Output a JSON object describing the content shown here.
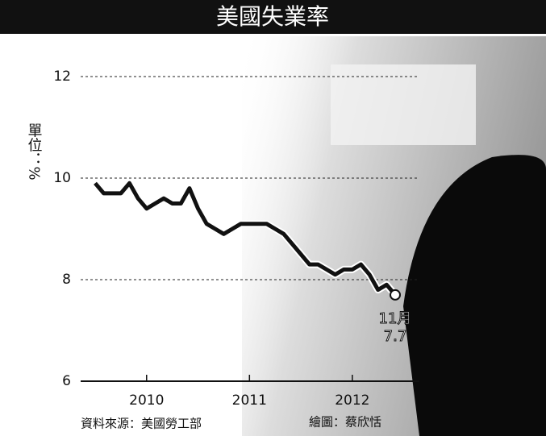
{
  "chart_data": {
    "type": "line",
    "title": "美國失業率",
    "y_label": "單位：%",
    "source": "資料來源：美國勞工部",
    "credit": "繪圖：蔡欣恬",
    "annotation": "11月",
    "categories": [
      null,
      null,
      null,
      null,
      null,
      null,
      "2010",
      null,
      null,
      null,
      null,
      null,
      null,
      null,
      null,
      null,
      null,
      null,
      "2011",
      null,
      null,
      null,
      null,
      null,
      null,
      null,
      null,
      null,
      null,
      null,
      "2012",
      null,
      null,
      null,
      null,
      null
    ],
    "series": [
      {
        "name": "失業率",
        "color": "#111111",
        "values": [
          9.9,
          9.7,
          9.7,
          9.7,
          9.9,
          9.6,
          9.4,
          9.5,
          9.6,
          9.5,
          9.5,
          9.8,
          9.4,
          9.1,
          9.0,
          8.9,
          9.0,
          9.1,
          9.1,
          9.1,
          9.1,
          9.0,
          8.9,
          8.7,
          8.5,
          8.3,
          8.3,
          8.2,
          8.1,
          8.2,
          8.2,
          8.3,
          8.1,
          7.8,
          7.9,
          7.7
        ]
      }
    ],
    "ylim": [
      6,
      12
    ],
    "yticks": [
      6,
      8,
      10,
      12
    ],
    "grid": true
  }
}
